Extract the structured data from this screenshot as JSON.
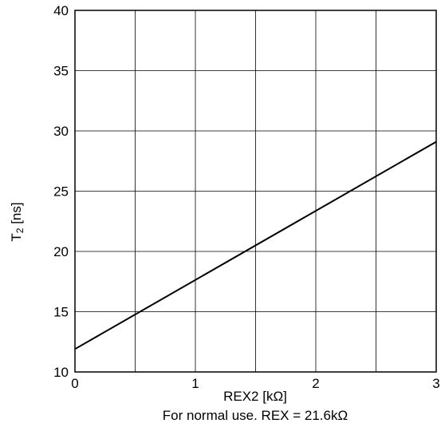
{
  "chart_data": {
    "type": "line",
    "title": "",
    "xlabel": "REX2 [kΩ]",
    "ylabel_main": "T",
    "ylabel_sub": "2",
    "ylabel_unit": " [ns]",
    "note": "For normal use. REX = 21.6kΩ",
    "xlim": [
      0,
      3
    ],
    "ylim": [
      10,
      40
    ],
    "grid": true,
    "x_ticks": [
      0,
      0.5,
      1,
      1.5,
      2,
      2.5,
      3
    ],
    "x_tick_labels": [
      "0",
      "",
      "1",
      "",
      "2",
      "",
      "3"
    ],
    "y_ticks": [
      10,
      15,
      20,
      25,
      30,
      35,
      40
    ],
    "y_tick_labels": [
      "10",
      "15",
      "20",
      "25",
      "30",
      "35",
      "40"
    ],
    "series": [
      {
        "x": [
          0,
          3
        ],
        "y": [
          11.9,
          29.1
        ],
        "color": "#000000"
      }
    ]
  }
}
